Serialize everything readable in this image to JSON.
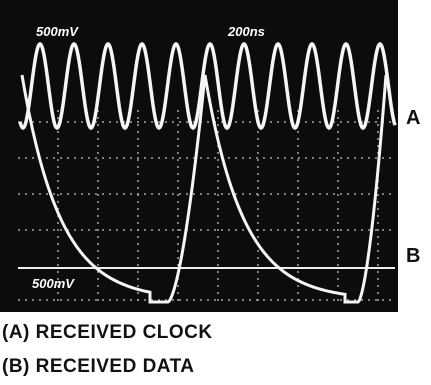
{
  "screen": {
    "volts_top": "500mV",
    "time_base": "200ns",
    "volts_bottom": "500mV"
  },
  "trace_labels": [
    "A",
    "B"
  ],
  "caption": [
    "(A) RECEIVED CLOCK",
    "(B) RECEIVED DATA"
  ]
}
